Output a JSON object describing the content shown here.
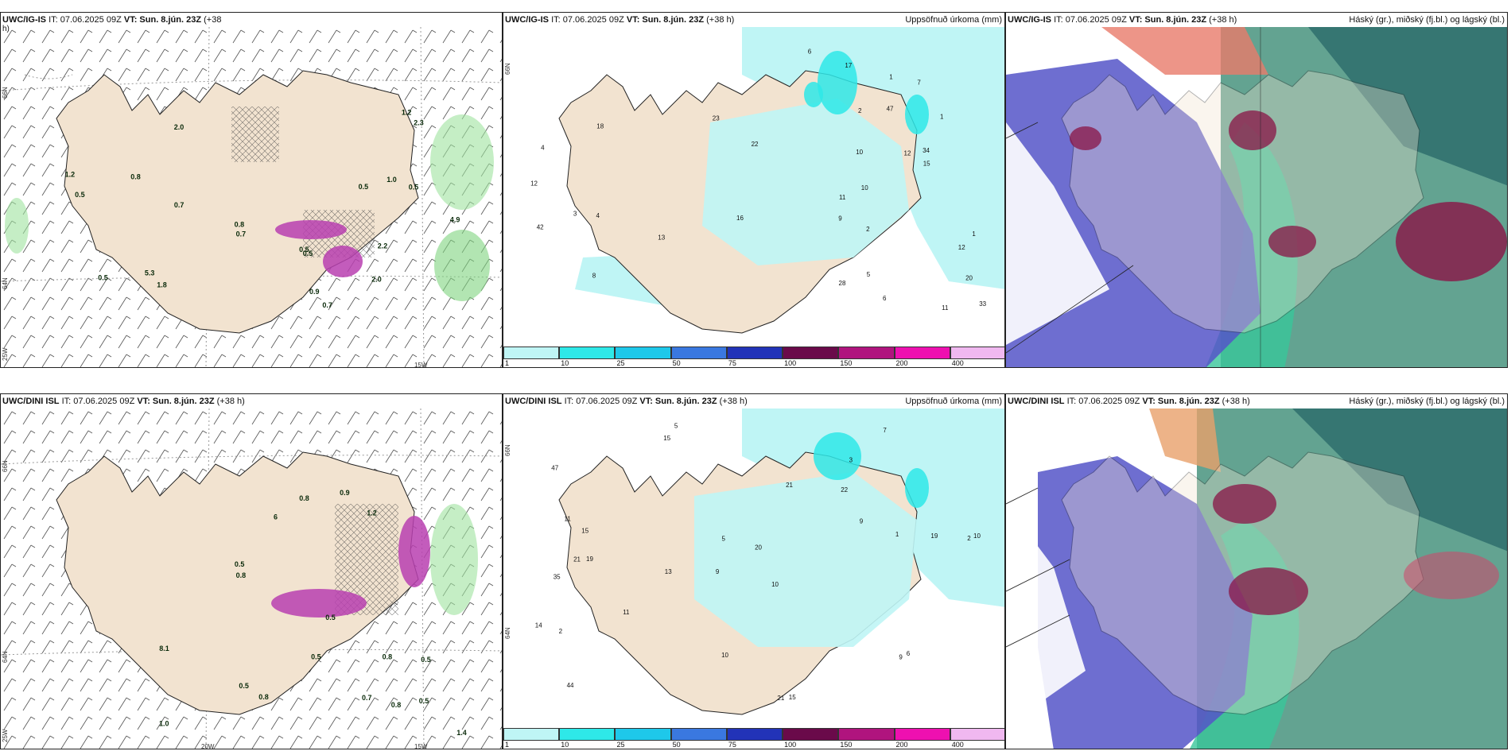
{
  "panels": {
    "top_left": {
      "title_model": "UWC/IG-IS",
      "title_it": "IT: 07.06.2025 09Z",
      "title_vt": "VT: Sun. 8.jún. 23Z",
      "title_lead": "(+38",
      "title_lead2": "h)"
    },
    "top_mid": {
      "title_model": "UWC/IG-IS",
      "title_it": "IT: 07.06.2025 09Z",
      "title_vt": "VT: Sun. 8.jún. 23Z",
      "title_lead": "(+38 h)",
      "right_title": "Uppsöfnuð úrkoma (mm)"
    },
    "top_right": {
      "title_model": "UWC/IG-IS",
      "title_it": "IT: 07.06.2025 09Z",
      "title_vt": "VT: Sun. 8.jún. 23Z",
      "title_lead": "(+38 h)",
      "right_title": "Háský (gr.), miðský (fj.bl.) og lágský (bl.)"
    },
    "bot_left": {
      "title_model": "UWC/DINI ISL",
      "title_it": "IT: 07.06.2025 09Z",
      "title_vt": "VT: Sun. 8.jún. 23Z",
      "title_lead": "(+38 h)"
    },
    "bot_mid": {
      "title_model": "UWC/DINI ISL",
      "title_it": "IT: 07.06.2025 09Z",
      "title_vt": "VT: Sun. 8.jún. 23Z",
      "title_lead": "(+38 h)",
      "right_title": "Uppsöfnuð úrkoma (mm)"
    },
    "bot_right": {
      "title_model": "UWC/DINI ISL",
      "title_it": "IT: 07.06.2025 09Z",
      "title_vt": "VT: Sun. 8.jún. 23Z",
      "title_lead": "(+38 h)",
      "right_title": "Háský (gr.), miðský (fj.bl.) og lágský (bl.)"
    }
  },
  "axes": {
    "lat_66": "66N",
    "lat_64": "64N",
    "lon_20": "20W",
    "lon_15": "15W",
    "lon_25": "25W"
  },
  "colorbar": {
    "ticks": [
      "1",
      "10",
      "25",
      "50",
      "75",
      "100",
      "150",
      "200",
      "400"
    ],
    "colors": [
      "#bff5f5",
      "#2ee8e8",
      "#1ec8ea",
      "#3a78e0",
      "#2233b8",
      "#6a0a4a",
      "#b0147e",
      "#ee10b0",
      "#f0b8f0"
    ]
  },
  "labels_tl": [
    "0.7",
    "2.0",
    "5.3",
    "0.8",
    "1.0",
    "0.9",
    "4.9",
    "0.7",
    "0.7",
    "1.8",
    "0.5",
    "1.2",
    "0.8",
    "0.5",
    "0.5",
    "1.2",
    "0.5",
    "2.3",
    "2.2",
    "0.5",
    "2.0",
    "0.5"
  ],
  "labels_bl": [
    "1.0",
    "0.5",
    "0.5",
    "0.5",
    "6",
    "0.9",
    "0.5",
    "1.2",
    "0.8",
    "0.5",
    "1.4",
    "0.8",
    "0.8",
    "0.8",
    "0.7",
    "0.5",
    "0.8",
    "8.1"
  ],
  "labels_tm": [
    "9",
    "1",
    "12",
    "12",
    "28",
    "47",
    "34",
    "22",
    "20",
    "6",
    "10",
    "11",
    "42",
    "2",
    "13",
    "11",
    "7",
    "3",
    "1",
    "23",
    "16",
    "12",
    "10",
    "17",
    "15",
    "8",
    "18",
    "2",
    "33",
    "4",
    "1",
    "6",
    "4",
    "5"
  ],
  "labels_bm": [
    "5",
    "3",
    "2",
    "9",
    "10",
    "19",
    "47",
    "22",
    "35",
    "21",
    "20",
    "44",
    "15",
    "13",
    "21",
    "15",
    "10",
    "7",
    "9",
    "11",
    "15",
    "21",
    "10",
    "19",
    "14",
    "11",
    "5",
    "1",
    "6",
    "2",
    "9"
  ]
}
